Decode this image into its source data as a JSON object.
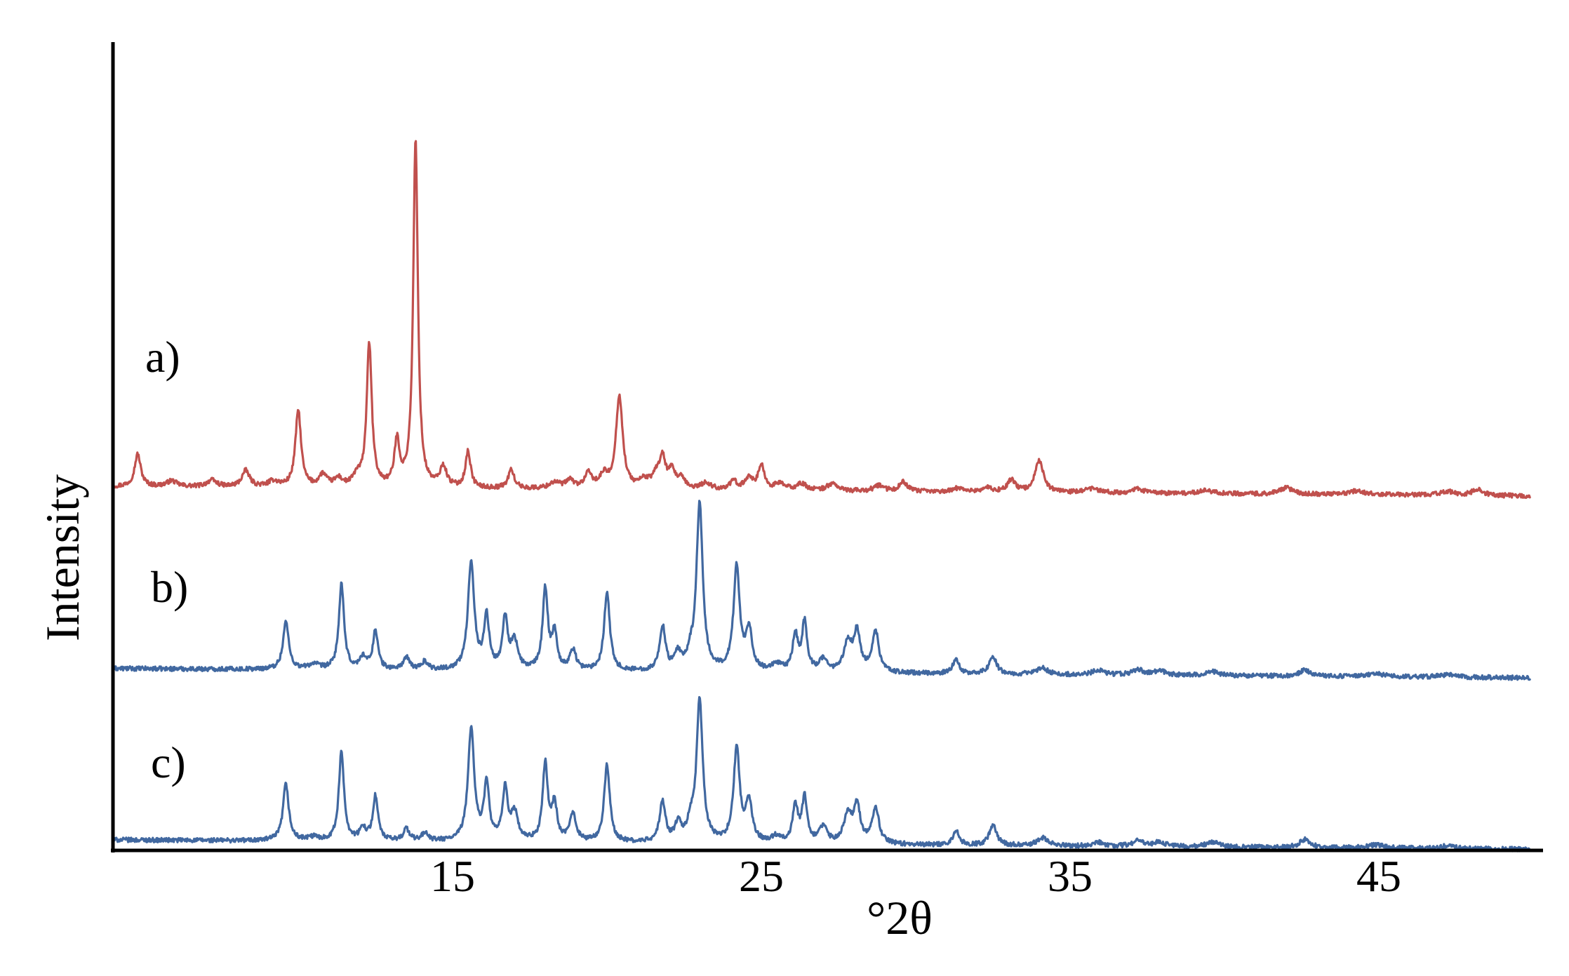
{
  "chart_data": {
    "type": "line",
    "title": "",
    "xlabel": "°2θ",
    "ylabel": "Intensity",
    "xlim": [
      4,
      50
    ],
    "ylim": [
      0,
      100
    ],
    "grid": false,
    "legend": "none",
    "x_ticks": [
      "15",
      "25",
      "35",
      "45"
    ],
    "x_tick_values": [
      15,
      25,
      35,
      45
    ],
    "series": [
      {
        "name": "a)",
        "color": "#c0504d",
        "baseline": 45,
        "peaks": [
          [
            4.8,
            4,
            0.12
          ],
          [
            5.9,
            0.7,
            0.2
          ],
          [
            7.2,
            0.8,
            0.2
          ],
          [
            8.3,
            2,
            0.15
          ],
          [
            9.2,
            0.7,
            0.2
          ],
          [
            10.0,
            9.5,
            0.11
          ],
          [
            10.8,
            1.5,
            0.15
          ],
          [
            11.3,
            1.0,
            0.15
          ],
          [
            11.9,
            1.2,
            0.15
          ],
          [
            12.3,
            17.7,
            0.1
          ],
          [
            13.2,
            5.5,
            0.1
          ],
          [
            13.8,
            43,
            0.09
          ],
          [
            14.7,
            2.5,
            0.13
          ],
          [
            15.5,
            4.5,
            0.1
          ],
          [
            16.9,
            2.3,
            0.12
          ],
          [
            18.3,
            0.8,
            0.2
          ],
          [
            18.8,
            1.0,
            0.15
          ],
          [
            19.4,
            1.8,
            0.15
          ],
          [
            19.9,
            1.5,
            0.15
          ],
          [
            20.4,
            11.5,
            0.13
          ],
          [
            21.2,
            1.0,
            0.2
          ],
          [
            21.6,
            1.5,
            0.15
          ],
          [
            21.8,
            3.5,
            0.12
          ],
          [
            22.1,
            2.0,
            0.13
          ],
          [
            22.4,
            1.2,
            0.15
          ],
          [
            23.2,
            0.8,
            0.2
          ],
          [
            24.1,
            1.0,
            0.15
          ],
          [
            24.6,
            1.5,
            0.15
          ],
          [
            25.0,
            3.0,
            0.12
          ],
          [
            25.6,
            0.8,
            0.2
          ],
          [
            26.3,
            0.8,
            0.2
          ],
          [
            27.3,
            0.9,
            0.2
          ],
          [
            28.8,
            0.7,
            0.2
          ],
          [
            29.6,
            1.2,
            0.15
          ],
          [
            31.4,
            0.5,
            0.2
          ],
          [
            32.3,
            0.5,
            0.2
          ],
          [
            33.1,
            1.5,
            0.15
          ],
          [
            34.0,
            4.0,
            0.16
          ],
          [
            35.7,
            0.5,
            0.25
          ],
          [
            37.2,
            0.5,
            0.25
          ],
          [
            39.4,
            0.4,
            0.3
          ],
          [
            42.0,
            0.8,
            0.25
          ],
          [
            44.3,
            0.5,
            0.3
          ],
          [
            47.2,
            0.5,
            0.25
          ],
          [
            48.2,
            0.8,
            0.2
          ]
        ]
      },
      {
        "name": "b)",
        "color": "#4168a0",
        "baseline": 22.5,
        "peaks": [
          [
            9.6,
            5.9,
            0.11
          ],
          [
            10.5,
            0.6,
            0.2
          ],
          [
            11.4,
            10.5,
            0.1
          ],
          [
            12.1,
            1.5,
            0.12
          ],
          [
            12.5,
            4.8,
            0.1
          ],
          [
            13.5,
            1.5,
            0.12
          ],
          [
            14.1,
            1.0,
            0.12
          ],
          [
            15.6,
            13.5,
            0.12
          ],
          [
            16.1,
            6.5,
            0.1
          ],
          [
            16.7,
            6.3,
            0.1
          ],
          [
            17.0,
            3.5,
            0.13
          ],
          [
            18.0,
            10.0,
            0.1
          ],
          [
            18.3,
            4.5,
            0.1
          ],
          [
            18.9,
            2.5,
            0.12
          ],
          [
            20.0,
            9.8,
            0.11
          ],
          [
            21.8,
            5.5,
            0.11
          ],
          [
            22.3,
            2.0,
            0.12
          ],
          [
            22.7,
            1.5,
            0.12
          ],
          [
            23.0,
            20.8,
            0.12
          ],
          [
            24.2,
            12.8,
            0.12
          ],
          [
            24.6,
            5.0,
            0.12
          ],
          [
            25.5,
            0.8,
            0.2
          ],
          [
            26.1,
            4.5,
            0.1
          ],
          [
            26.4,
            6.0,
            0.1
          ],
          [
            27.0,
            1.5,
            0.15
          ],
          [
            27.8,
            3.5,
            0.15
          ],
          [
            28.1,
            4.8,
            0.13
          ],
          [
            28.7,
            5.0,
            0.13
          ],
          [
            31.3,
            1.8,
            0.12
          ],
          [
            32.5,
            2.2,
            0.14
          ],
          [
            34.1,
            0.8,
            0.2
          ],
          [
            35.9,
            0.6,
            0.2
          ],
          [
            37.2,
            0.7,
            0.2
          ],
          [
            37.9,
            0.6,
            0.2
          ],
          [
            39.6,
            0.5,
            0.25
          ],
          [
            42.6,
            0.8,
            0.2
          ],
          [
            44.9,
            0.4,
            0.3
          ],
          [
            47.2,
            0.3,
            0.3
          ]
        ]
      },
      {
        "name": "c)",
        "color": "#4168a0",
        "baseline": 1.3,
        "peaks": [
          [
            9.6,
            7.0,
            0.11
          ],
          [
            10.5,
            0.4,
            0.2
          ],
          [
            11.4,
            11.0,
            0.1
          ],
          [
            12.1,
            1.5,
            0.12
          ],
          [
            12.5,
            5.5,
            0.1
          ],
          [
            13.5,
            1.5,
            0.12
          ],
          [
            14.1,
            1.0,
            0.12
          ],
          [
            15.6,
            14.0,
            0.12
          ],
          [
            16.1,
            7.0,
            0.1
          ],
          [
            16.7,
            6.3,
            0.1
          ],
          [
            17.0,
            3.5,
            0.13
          ],
          [
            18.0,
            9.5,
            0.1
          ],
          [
            18.3,
            4.5,
            0.1
          ],
          [
            18.9,
            3.5,
            0.12
          ],
          [
            20.0,
            9.5,
            0.11
          ],
          [
            21.8,
            5.0,
            0.11
          ],
          [
            22.3,
            2.2,
            0.12
          ],
          [
            22.7,
            2.0,
            0.12
          ],
          [
            23.0,
            17.5,
            0.12
          ],
          [
            24.2,
            11.5,
            0.12
          ],
          [
            24.6,
            5.0,
            0.12
          ],
          [
            25.5,
            0.8,
            0.2
          ],
          [
            26.1,
            4.5,
            0.1
          ],
          [
            26.4,
            5.5,
            0.1
          ],
          [
            27.0,
            2.0,
            0.15
          ],
          [
            27.8,
            3.5,
            0.15
          ],
          [
            28.1,
            4.5,
            0.13
          ],
          [
            28.7,
            4.5,
            0.13
          ],
          [
            31.3,
            1.8,
            0.12
          ],
          [
            32.5,
            2.5,
            0.14
          ],
          [
            34.1,
            1.0,
            0.2
          ],
          [
            35.9,
            0.5,
            0.2
          ],
          [
            37.2,
            0.7,
            0.2
          ],
          [
            37.9,
            0.6,
            0.2
          ],
          [
            39.6,
            0.6,
            0.25
          ],
          [
            42.6,
            1.0,
            0.2
          ],
          [
            44.9,
            0.4,
            0.3
          ],
          [
            47.2,
            0.3,
            0.3
          ]
        ]
      }
    ]
  }
}
